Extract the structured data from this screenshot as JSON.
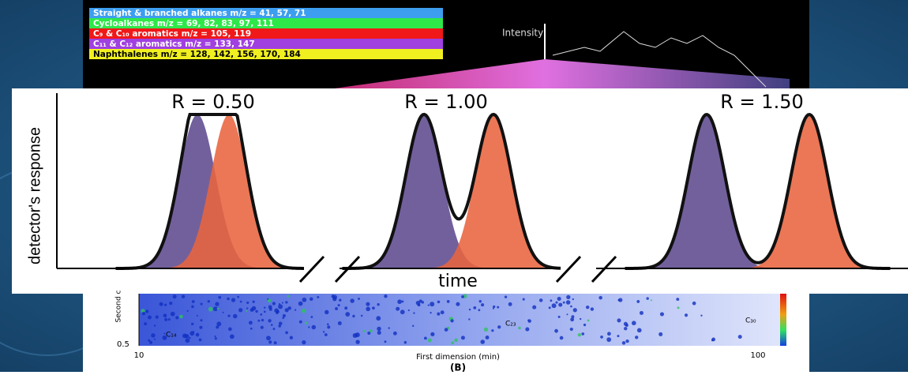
{
  "top_image": {
    "legend": [
      "Straight & branched alkanes m/z = 41, 57, 71",
      "Cycloalkanes m/z = 69, 82, 83, 97, 111",
      "C₉ & C₁₀ aromatics m/z = 105, 119",
      "C₁₁ & C₁₂ aromatics m/z = 133, 147",
      "Naphthalenes m/z = 128, 142, 156, 170, 184"
    ],
    "axis_label": "Intensity"
  },
  "diagram": {
    "panels": [
      "R = 0.50",
      "R = 1.00",
      "R = 1.50"
    ],
    "y_label": "detector's response",
    "x_label": "time"
  },
  "bottom_image": {
    "y_label": "Second c",
    "y_tick": "0.5",
    "x_ticks": [
      "10",
      "100"
    ],
    "x_label": "First dimension (min)",
    "peak_labels": [
      "C₁₄",
      "C₂₃",
      "C₃₀"
    ],
    "caption": "(B)"
  }
}
